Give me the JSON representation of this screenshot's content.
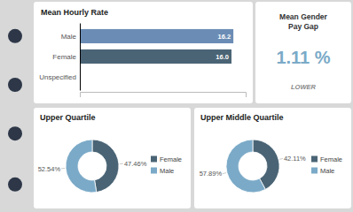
{
  "chart_data": [
    {
      "type": "bar",
      "title": "Mean Hourly Rate",
      "orientation": "horizontal",
      "categories": [
        "Male",
        "Female",
        "Unspecified"
      ],
      "values": [
        16.2,
        16.0,
        null
      ],
      "value_labels": [
        "16.2",
        "16.0",
        null
      ],
      "colors": [
        "#6b8db5",
        "#4a6475"
      ],
      "xlim": [
        0,
        17.5
      ],
      "data_labels": true,
      "tick_labels": "y"
    },
    {
      "type": "kpi",
      "title": "Mean Gender\nPay Gap",
      "values": [
        1.11
      ],
      "value_labels": [
        "1.11 %"
      ],
      "color": "#7baac8",
      "annotations": [
        "LOWER"
      ]
    },
    {
      "type": "pie",
      "title": "Upper Quartile",
      "categories": [
        "Female",
        "Male"
      ],
      "values": [
        47.46,
        52.54
      ],
      "value_labels": [
        "47.46%",
        "52.54%"
      ],
      "colors": [
        "#4a6475",
        "#7baac8"
      ],
      "data_labels": true,
      "legend": "right"
    },
    {
      "type": "pie",
      "title": "Upper Middle Quartile",
      "categories": [
        "Female",
        "Male"
      ],
      "values": [
        42.11,
        57.89
      ],
      "value_labels": [
        "42.11%",
        "57.89%"
      ],
      "colors": [
        "#4a6475",
        "#7baac8"
      ],
      "data_labels": true,
      "legend": "right"
    }
  ]
}
